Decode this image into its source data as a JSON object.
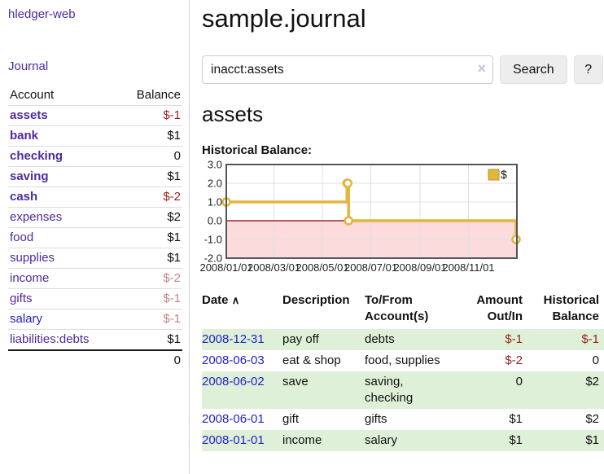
{
  "sidebar": {
    "brand": "hledger-web",
    "journal_link": "Journal",
    "accounts": {
      "header_account": "Account",
      "header_balance": "Balance",
      "rows": [
        {
          "name": "assets",
          "balance": "$-1"
        },
        {
          "name": "bank",
          "balance": "$1"
        },
        {
          "name": "checking",
          "balance": "0"
        },
        {
          "name": "saving",
          "balance": "$1"
        },
        {
          "name": "cash",
          "balance": "$-2"
        },
        {
          "name": "expenses",
          "balance": "$2"
        },
        {
          "name": "food",
          "balance": "$1"
        },
        {
          "name": "supplies",
          "balance": "$1"
        },
        {
          "name": "income",
          "balance": "$-2"
        },
        {
          "name": "gifts",
          "balance": "$-1"
        },
        {
          "name": "salary",
          "balance": "$-1"
        },
        {
          "name": "liabilities:debts",
          "balance": "$1"
        }
      ],
      "total": "0"
    }
  },
  "header": {
    "title": "sample.journal",
    "search": {
      "value": "inacct:assets",
      "clear_icon": "×",
      "search_button": "Search",
      "help_button": "?"
    }
  },
  "content": {
    "account_heading": "assets",
    "chart_title": "Historical Balance:"
  },
  "chart_data": {
    "type": "line",
    "step": true,
    "title": "Historical Balance:",
    "series": [
      {
        "name": "$",
        "color": "#e2b53c",
        "points": [
          [
            "2008-01-01",
            1
          ],
          [
            "2008-06-01",
            2
          ],
          [
            "2008-06-02",
            2
          ],
          [
            "2008-06-03",
            0
          ],
          [
            "2008-12-31",
            -1
          ]
        ]
      }
    ],
    "x_range": [
      "2008-01-01",
      "2009-01-01"
    ],
    "x_ticks": [
      "2008/01/01",
      "2008/03/01",
      "2008/05/01",
      "2008/07/01",
      "2008/09/01",
      "2008/11/01"
    ],
    "y_ticks": [
      "3.0",
      "2.0",
      "1.0",
      "0.0",
      "-1.0",
      "-2.0"
    ],
    "ylim": [
      -2,
      3
    ],
    "legend": "$",
    "legend_position": "top-right",
    "grid": true,
    "negative_fill": "#fbdbdb",
    "zero_line_color": "#8b0000",
    "border_color": "#555555"
  },
  "register": {
    "headers": {
      "date": "Date",
      "sort_icon": "∧",
      "description": "Description",
      "accounts_l1": "To/From",
      "accounts_l2": "Account(s)",
      "amount_l1": "Amount",
      "amount_l2": "Out/In",
      "balance_l1": "Historical",
      "balance_l2": "Balance"
    },
    "rows": [
      {
        "date": "2008-12-31",
        "description": "pay off",
        "accounts": "debts",
        "amount": "$-1",
        "balance": "$-1"
      },
      {
        "date": "2008-06-03",
        "description": "eat & shop",
        "accounts": "food, supplies",
        "amount": "$-2",
        "balance": "0"
      },
      {
        "date": "2008-06-02",
        "description": "save",
        "accounts": "saving, checking",
        "amount": "0",
        "balance": "$2"
      },
      {
        "date": "2008-06-01",
        "description": "gift",
        "accounts": "gifts",
        "amount": "$1",
        "balance": "$2"
      },
      {
        "date": "2008-01-01",
        "description": "income",
        "accounts": "salary",
        "amount": "$1",
        "balance": "$1"
      }
    ]
  }
}
